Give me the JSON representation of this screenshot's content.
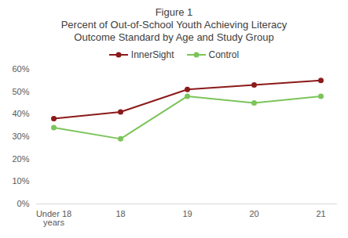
{
  "chart_data": {
    "type": "line",
    "title": "Figure 1",
    "subtitle": "Percent of Out-of-School Youth Achieving Literacy Outcome Standard by Age and Study Group",
    "categories": [
      "Under 18 years",
      "18",
      "19",
      "20",
      "21"
    ],
    "series": [
      {
        "name": "InnerSight",
        "color": "#8b1a1a",
        "values": [
          38,
          41,
          51,
          53,
          55
        ]
      },
      {
        "name": "Control",
        "color": "#7cc45a",
        "values": [
          34,
          29,
          48,
          45,
          48
        ]
      }
    ],
    "ylim": [
      0,
      60
    ],
    "yticks": [
      {
        "value": 0,
        "label": "0%"
      },
      {
        "value": 10,
        "label": "10%"
      },
      {
        "value": 20,
        "label": "20%"
      },
      {
        "value": 30,
        "label": "30%"
      },
      {
        "value": 40,
        "label": "40%"
      },
      {
        "value": 50,
        "label": "50%"
      },
      {
        "value": 60,
        "label": "60%"
      }
    ],
    "grid": false,
    "legend": "top",
    "marker": "circle",
    "line_style": "solid"
  }
}
